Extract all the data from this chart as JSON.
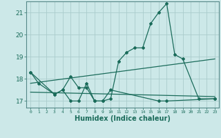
{
  "title": "",
  "xlabel": "Humidex (Indice chaleur)",
  "background_color": "#cce8e8",
  "grid_color": "#aacccc",
  "line_color": "#1a6b5a",
  "x_values": [
    0,
    1,
    2,
    3,
    4,
    5,
    6,
    7,
    8,
    9,
    10,
    11,
    12,
    13,
    14,
    15,
    16,
    17,
    18,
    19,
    20,
    21,
    22,
    23
  ],
  "series1": [
    18.3,
    17.8,
    null,
    17.3,
    17.5,
    18.1,
    17.6,
    17.6,
    17.0,
    17.0,
    17.1,
    18.8,
    19.2,
    19.4,
    19.4,
    20.5,
    21.0,
    21.4,
    19.1,
    18.9,
    null,
    17.1,
    null,
    17.1
  ],
  "series2": [
    18.3,
    null,
    null,
    17.3,
    17.5,
    17.0,
    17.0,
    17.8,
    17.0,
    17.0,
    17.5,
    null,
    null,
    null,
    null,
    null,
    17.0,
    17.0,
    null,
    null,
    null,
    null,
    null,
    17.1
  ],
  "trend1_x": [
    0,
    23
  ],
  "trend1_y": [
    17.8,
    18.9
  ],
  "trend2_x": [
    0,
    23
  ],
  "trend2_y": [
    17.4,
    17.2
  ],
  "ylim": [
    16.7,
    21.5
  ],
  "yticks": [
    17,
    18,
    19,
    20,
    21
  ],
  "xticks": [
    0,
    1,
    2,
    3,
    4,
    5,
    6,
    7,
    8,
    9,
    10,
    11,
    12,
    13,
    14,
    15,
    16,
    17,
    18,
    19,
    20,
    21,
    22,
    23
  ]
}
